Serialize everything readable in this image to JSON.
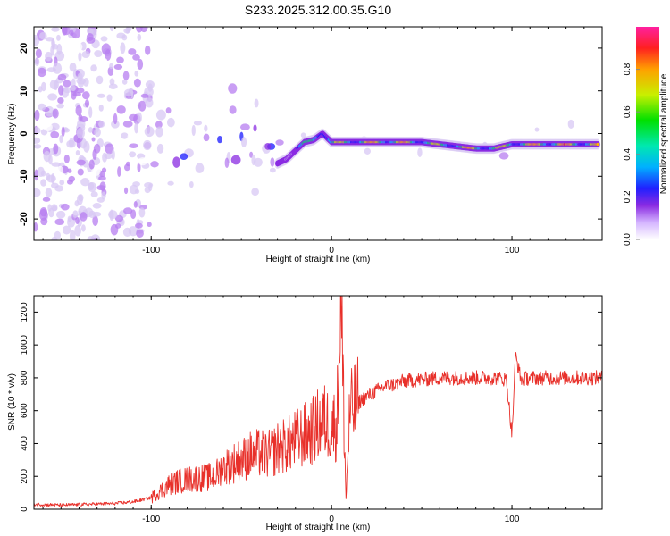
{
  "title": "S233.2025.312.00.35.G10",
  "colors": {
    "snr_line": "#e8302a",
    "spectrogram_palette": [
      "#ffffff",
      "#d8c8f4",
      "#b77ef0",
      "#8a2be2",
      "#1a1aff",
      "#00c0ff",
      "#00e070",
      "#c8f000",
      "#ffb000",
      "#ff2020"
    ]
  },
  "chart_data": [
    {
      "type": "heatmap",
      "title": "S233.2025.312.00.35.G10",
      "xlabel": "Height of straight line (km)",
      "ylabel": "Frequency (Hz)",
      "xlim": [
        -165,
        150
      ],
      "ylim": [
        -25,
        25
      ],
      "xticks": [
        -100,
        0,
        100
      ],
      "yticks": [
        -20,
        -10,
        0,
        10,
        20
      ],
      "colorbar": {
        "label": "Normalized spectral amplitude",
        "range": [
          0.0,
          1.0
        ],
        "ticks": [
          "0.0",
          "0.2",
          "0.4",
          "0.6",
          "0.8"
        ]
      },
      "ridge": {
        "x": [
          -30,
          -25,
          -20,
          -15,
          -10,
          -5,
          0,
          10,
          20,
          30,
          40,
          50,
          60,
          70,
          80,
          90,
          100,
          110,
          120,
          130,
          140,
          148
        ],
        "y": [
          -7,
          -6,
          -4,
          -2,
          -1.5,
          0,
          -2,
          -2,
          -2,
          -2,
          -2,
          -2,
          -2.5,
          -3,
          -3.5,
          -3.5,
          -2.5,
          -2.5,
          -2.5,
          -2.5,
          -2.5,
          -2.5
        ],
        "amplitude": [
          0.35,
          0.45,
          0.55,
          0.7,
          0.75,
          0.85,
          0.75,
          0.85,
          0.9,
          0.95,
          0.9,
          0.85,
          0.8,
          0.85,
          0.9,
          0.8,
          0.85,
          0.9,
          0.95,
          0.95,
          0.9,
          0.85
        ]
      }
    },
    {
      "type": "line",
      "xlabel": "Height of straight line (km)",
      "ylabel": "SNR (10 * v/v)",
      "xlim": [
        -165,
        150
      ],
      "ylim": [
        0,
        1300
      ],
      "xticks": [
        -100,
        0,
        100
      ],
      "yticks": [
        0,
        200,
        400,
        600,
        800,
        1000,
        1200
      ],
      "series": [
        {
          "name": "SNR",
          "x": [
            -165,
            -150,
            -135,
            -120,
            -110,
            -100,
            -95,
            -90,
            -85,
            -80,
            -75,
            -70,
            -65,
            -60,
            -55,
            -50,
            -45,
            -40,
            -35,
            -30,
            -25,
            -20,
            -15,
            -10,
            -5,
            0,
            3,
            5,
            7,
            8,
            10,
            12,
            15,
            20,
            25,
            30,
            35,
            40,
            50,
            60,
            70,
            80,
            90,
            97,
            100,
            102,
            105,
            110,
            120,
            130,
            140,
            150
          ],
          "y": [
            30,
            25,
            30,
            35,
            45,
            70,
            110,
            150,
            170,
            180,
            190,
            190,
            200,
            250,
            280,
            300,
            330,
            340,
            330,
            370,
            390,
            420,
            450,
            480,
            540,
            510,
            520,
            1300,
            520,
            60,
            560,
            620,
            650,
            690,
            720,
            750,
            760,
            780,
            790,
            800,
            800,
            800,
            800,
            790,
            450,
            940,
            790,
            800,
            800,
            800,
            800,
            800
          ]
        }
      ]
    }
  ]
}
